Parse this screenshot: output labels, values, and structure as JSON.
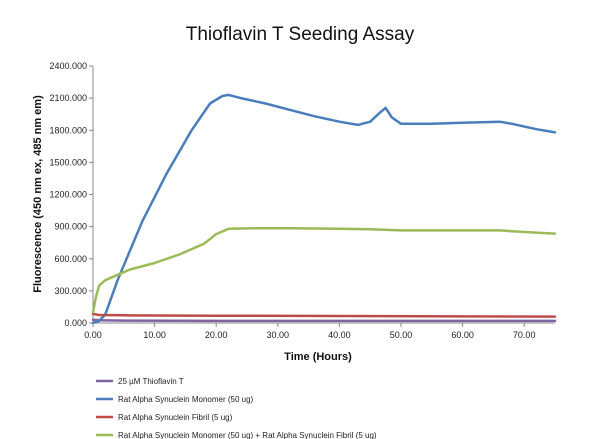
{
  "chart_data": {
    "type": "line",
    "title": "Thioflavin T Seeding Assay",
    "xlabel": "Time (Hours)",
    "ylabel": "Fluorescence (450 nm ex, 485 nm em)",
    "xlim": [
      0,
      75
    ],
    "ylim": [
      0,
      2400
    ],
    "xticks": [
      "0.00",
      "10.00",
      "20.00",
      "30.00",
      "40.00",
      "50.00",
      "60.00",
      "70.00"
    ],
    "yticks": [
      "0.000",
      "300.000",
      "600.000",
      "900.000",
      "1200.000",
      "1500.000",
      "1800.000",
      "2100.000",
      "2400.000"
    ],
    "grid": false,
    "legend_position": "bottom",
    "series": [
      {
        "name": "25 µM Thioflavin T",
        "color": "#8064a2",
        "points": [
          [
            0,
            30
          ],
          [
            1,
            25
          ],
          [
            5,
            22
          ],
          [
            20,
            20
          ],
          [
            40,
            20
          ],
          [
            60,
            20
          ],
          [
            75,
            20
          ]
        ]
      },
      {
        "name": "Rat Alpha Synuclein Monomer (50 ug)",
        "color": "#4a7ebb",
        "points": [
          [
            0,
            0
          ],
          [
            1,
            20
          ],
          [
            2,
            80
          ],
          [
            4,
            400
          ],
          [
            8,
            950
          ],
          [
            12,
            1400
          ],
          [
            16,
            1800
          ],
          [
            19,
            2050
          ],
          [
            21,
            2120
          ],
          [
            22,
            2130
          ],
          [
            24,
            2100
          ],
          [
            28,
            2050
          ],
          [
            32,
            1990
          ],
          [
            36,
            1930
          ],
          [
            40,
            1880
          ],
          [
            43,
            1850
          ],
          [
            45,
            1880
          ],
          [
            46.5,
            1960
          ],
          [
            47.5,
            2010
          ],
          [
            48.5,
            1920
          ],
          [
            50,
            1860
          ],
          [
            55,
            1860
          ],
          [
            60,
            1870
          ],
          [
            66,
            1880
          ],
          [
            68,
            1860
          ],
          [
            72,
            1810
          ],
          [
            75,
            1780
          ]
        ]
      },
      {
        "name": "Rat Alpha Synuclein Fibril (5 ug)",
        "color": "#be4b48",
        "points": [
          [
            0,
            85
          ],
          [
            1,
            75
          ],
          [
            5,
            72
          ],
          [
            20,
            68
          ],
          [
            40,
            65
          ],
          [
            60,
            62
          ],
          [
            75,
            60
          ]
        ]
      },
      {
        "name": "Rat Alpha Synuclein Monomer (50 ug) + Rat Alpha Synuclein Fibril (5 ug)",
        "color": "#9bbb59",
        "points": [
          [
            0,
            100
          ],
          [
            0.5,
            250
          ],
          [
            1,
            350
          ],
          [
            2,
            400
          ],
          [
            4,
            450
          ],
          [
            6,
            500
          ],
          [
            10,
            560
          ],
          [
            14,
            640
          ],
          [
            18,
            740
          ],
          [
            20,
            830
          ],
          [
            22,
            880
          ],
          [
            26,
            885
          ],
          [
            32,
            885
          ],
          [
            40,
            880
          ],
          [
            45,
            875
          ],
          [
            50,
            865
          ],
          [
            60,
            865
          ],
          [
            66,
            865
          ],
          [
            70,
            850
          ],
          [
            75,
            835
          ]
        ]
      }
    ]
  }
}
